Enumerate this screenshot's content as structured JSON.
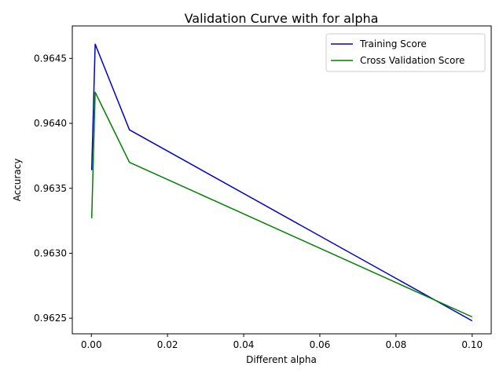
{
  "chart_data": {
    "type": "line",
    "title": "Validation Curve with for alpha",
    "xlabel": "Different alpha",
    "ylabel": "Accuracy",
    "xlim": [
      -0.005,
      0.105
    ],
    "ylim": [
      0.96238,
      0.96475
    ],
    "xticks": [
      0.0,
      0.02,
      0.04,
      0.06,
      0.08,
      0.1
    ],
    "xtick_labels": [
      "0.00",
      "0.02",
      "0.04",
      "0.06",
      "0.08",
      "0.10"
    ],
    "yticks": [
      0.9625,
      0.963,
      0.9635,
      0.964,
      0.9645
    ],
    "ytick_labels": [
      "0.9625",
      "0.9630",
      "0.9635",
      "0.9640",
      "0.9645"
    ],
    "grid": false,
    "legend_position": "top-right",
    "x": [
      0.0001,
      0.001,
      0.01,
      0.1
    ],
    "series": [
      {
        "name": "Training Score",
        "color": "#0000cc",
        "values": [
          0.96364,
          0.96461,
          0.96395,
          0.96248
        ]
      },
      {
        "name": "Cross Validation Score",
        "color": "#008000",
        "values": [
          0.96327,
          0.96424,
          0.9637,
          0.96251
        ]
      }
    ]
  }
}
